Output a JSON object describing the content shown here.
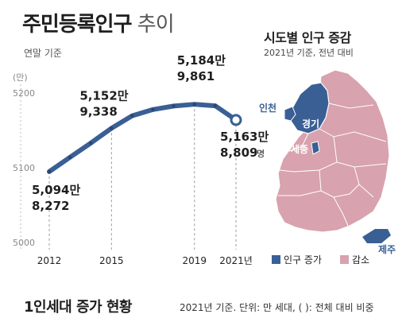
{
  "header": {
    "title_bold": "주민등록인구",
    "title_light": " 추이",
    "subtitle": "연말 기준"
  },
  "chart_data": {
    "type": "line",
    "title": "주민등록인구 추이",
    "subtitle": "연말 기준",
    "y_unit": "(만)",
    "yticks": [
      5000,
      5100,
      5200
    ],
    "ylim": [
      5000,
      5200
    ],
    "x": [
      2012,
      2013,
      2014,
      2015,
      2016,
      2017,
      2018,
      2019,
      2020,
      2021
    ],
    "x_tick_labels": [
      "2012",
      "2015",
      "2019",
      "2021년"
    ],
    "series": [
      {
        "values": [
          5094.8,
          5114,
          5133,
          5152.9,
          5169.6,
          5177.9,
          5182.6,
          5184.9,
          5182.9,
          5163.9
        ]
      }
    ],
    "annotations": [
      {
        "x": 2012,
        "line1": "5,094만",
        "line2": "8,272",
        "unit2": ""
      },
      {
        "x": 2015,
        "line1": "5,152만",
        "line2": "9,338",
        "unit2": ""
      },
      {
        "x": 2019,
        "line1": "5,184만",
        "line2": "9,861",
        "unit2": ""
      },
      {
        "x": 2021,
        "line1": "5,163만",
        "line2": "8,809",
        "unit2": "명"
      }
    ],
    "grid": false
  },
  "map": {
    "title": "시도별 인구 증감",
    "subtitle": "2021년 기준, 전년 대비",
    "labels": {
      "incheon": "인천",
      "gyeonggi": "경기",
      "sejong": "세종",
      "jeju": "제주"
    },
    "legend": [
      {
        "label": "인구 증가",
        "color": "#3a5f95"
      },
      {
        "label": "감소",
        "color": "#d8a2ae"
      }
    ]
  },
  "colors": {
    "line": "#3a5f95",
    "increase": "#3a5f95",
    "decrease": "#d8a2ae",
    "dots": "#2b466e"
  },
  "bottom": {
    "title": "1인세대 증가 현황",
    "note": "2021년 기준. 단위: 만 세대, ( ): 전체 대비 비중"
  }
}
